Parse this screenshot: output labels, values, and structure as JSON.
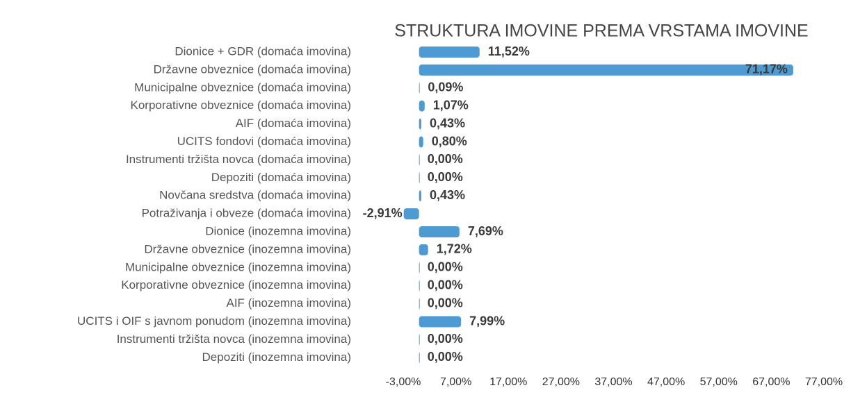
{
  "chart_data": {
    "type": "hbar",
    "title": "STRUKTURA IMOVINE PREMA VRSTAMA IMOVINE",
    "categories": [
      "Dionice + GDR (domaća imovina)",
      "Državne obveznice (domaća imovina)",
      "Municipalne obveznice (domaća imovina)",
      "Korporativne obveznice (domaća imovina)",
      "AIF  (domaća imovina)",
      "UCITS fondovi (domaća imovina)",
      "Instrumenti tržišta novca (domaća imovina)",
      "Depoziti (domaća imovina)",
      "Novčana sredstva (domaća imovina)",
      "Potraživanja i obveze (domaća imovina)",
      "Dionice (inozemna imovina)",
      "Državne obveznice (inozemna imovina)",
      "Municipalne obveznice (inozemna imovina)",
      "Korporativne obveznice (inozemna imovina)",
      "AIF (inozemna imovina)",
      "UCITS i OIF s javnom ponudom (inozemna imovina)",
      "Instrumenti tržišta novca (inozemna imovina)",
      "Depoziti (inozemna imovina)"
    ],
    "values": [
      11.52,
      71.17,
      0.09,
      1.07,
      0.43,
      0.8,
      0,
      0,
      0.43,
      -2.91,
      7.69,
      1.72,
      0,
      0,
      0,
      7.99,
      0,
      0
    ],
    "value_labels": [
      "11,52%",
      "71,17%",
      "0,09%",
      "1,07%",
      "0,43%",
      "0,80%",
      "0,00%",
      "0,00%",
      "0,43%",
      "-2,91%",
      "7,69%",
      "1,72%",
      "0,00%",
      "0,00%",
      "0,00%",
      "7,99%",
      "0,00%",
      "0,00%"
    ],
    "color": "#4e9bd3",
    "xlim": [
      -3,
      77
    ],
    "xticks": [
      {
        "value": -3,
        "label": "-3,00%"
      },
      {
        "value": 7,
        "label": "7,00%"
      },
      {
        "value": 17,
        "label": "17,00%"
      },
      {
        "value": 27,
        "label": "27,00%"
      },
      {
        "value": 37,
        "label": "37,00%"
      },
      {
        "value": 47,
        "label": "47,00%"
      },
      {
        "value": 57,
        "label": "57,00%"
      },
      {
        "value": 67,
        "label": "67,00%"
      },
      {
        "value": 77,
        "label": "77,00%"
      }
    ],
    "grid": false
  }
}
